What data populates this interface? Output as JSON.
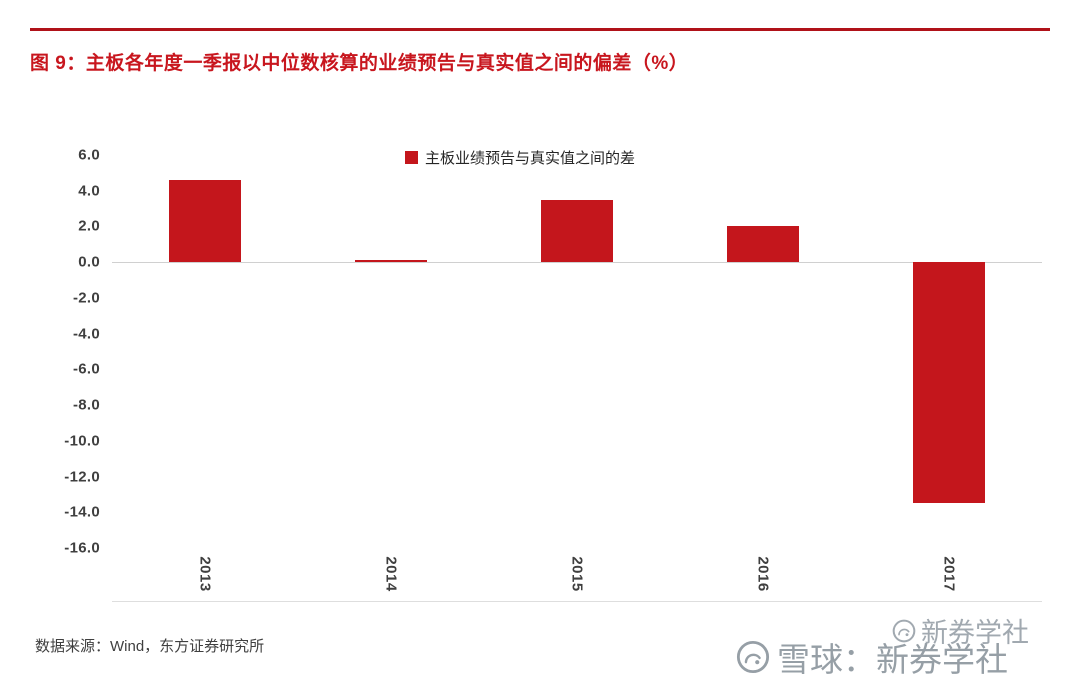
{
  "figure": {
    "title": "图 9：主板各年度一季报以中位数核算的业绩预告与真实值之间的偏差（%）",
    "source": "数据来源：Wind，东方证券研究所"
  },
  "chart_data": {
    "type": "bar",
    "title": "主板各年度一季报以中位数核算的业绩预告与真实值之间的偏差（%）",
    "legend": "主板业绩预告与真实值之间的差",
    "legend_position": "top-center",
    "categories": [
      "2013",
      "2014",
      "2015",
      "2016",
      "2017"
    ],
    "series": [
      {
        "name": "主板业绩预告与真实值之间的差",
        "values": [
          4.6,
          0.15,
          3.5,
          2.05,
          -13.5
        ]
      }
    ],
    "xlabel": "",
    "ylabel": "",
    "ylim": [
      -16.0,
      6.0
    ],
    "ytick_interval": 2.0,
    "yticks": [
      6.0,
      4.0,
      2.0,
      0.0,
      -2.0,
      -4.0,
      -6.0,
      -8.0,
      -10.0,
      -12.0,
      -14.0,
      -16.0
    ],
    "grid": "zero-line-only",
    "bar_color": "#C4161C"
  },
  "watermark": {
    "primary": "雪球：新券学社",
    "secondary": "新券学社"
  },
  "colors": {
    "accent": "#C4161C",
    "rule": "#B01219",
    "grid": "#D0D0D0",
    "text": "#3F3F3F",
    "watermark": "#8E979F"
  }
}
